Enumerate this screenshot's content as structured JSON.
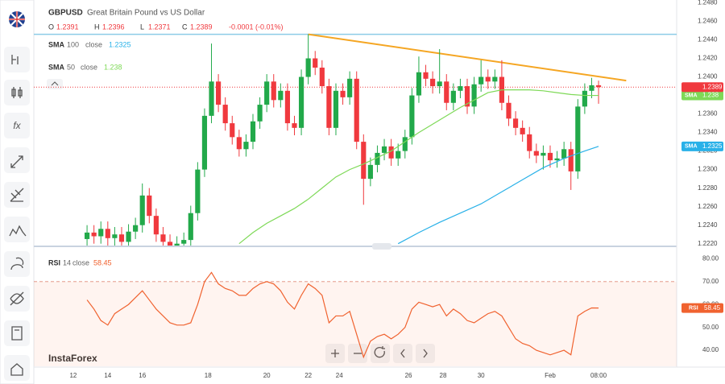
{
  "chart_data": {
    "type": "candlestick",
    "symbol": "GBPUSD",
    "description": "Great Britain Pound vs US Dollar",
    "ohlc_labels": [
      "O",
      "H",
      "L",
      "C"
    ],
    "change": "-0.0001 (-0.01%)",
    "watermark": "InstaForex",
    "up_color": "#22a94a",
    "down_color": "#f0393e",
    "x": [
      0,
      1,
      2,
      3,
      4,
      5,
      6,
      7,
      8,
      9,
      10,
      11,
      12,
      13,
      14,
      15,
      16,
      17,
      18,
      19,
      20,
      21,
      22,
      23,
      24,
      25,
      26,
      27,
      28,
      29,
      30,
      31,
      32,
      33,
      34,
      35,
      36,
      37,
      38,
      39,
      40,
      41,
      42,
      43,
      44,
      45,
      46,
      47,
      48,
      49,
      50,
      51,
      52,
      53,
      54,
      55,
      56,
      57,
      58,
      59,
      60,
      61,
      62,
      63,
      64,
      65,
      66,
      67,
      68,
      69,
      70,
      71,
      72,
      73,
      74
    ],
    "open": [
      1.2225,
      1.2232,
      1.2228,
      1.2236,
      1.2226,
      1.223,
      1.2222,
      1.2233,
      1.224,
      1.2272,
      1.225,
      1.223,
      1.2222,
      1.2218,
      1.222,
      1.2224,
      1.2253,
      1.23,
      1.2358,
      1.2395,
      1.237,
      1.235,
      1.2335,
      1.2322,
      1.233,
      1.2352,
      1.237,
      1.2395,
      1.2375,
      1.2385,
      1.235,
      1.2345,
      1.24,
      1.242,
      1.241,
      1.239,
      1.2345,
      1.2385,
      1.2378,
      1.2398,
      1.233,
      1.229,
      1.2305,
      1.2318,
      1.2325,
      1.2312,
      1.232,
      1.2335,
      1.238,
      1.2405,
      1.2398,
      1.239,
      1.2395,
      1.2372,
      1.2385,
      1.239,
      1.2368,
      1.2392,
      1.24,
      1.2395,
      1.24,
      1.2372,
      1.2355,
      1.2345,
      1.2338,
      1.232,
      1.2315,
      1.2318,
      1.231,
      1.2312,
      1.2322,
      1.2298,
      1.2368,
      1.2385,
      1.2391
    ],
    "high": [
      1.224,
      1.224,
      1.2244,
      1.2244,
      1.2238,
      1.2238,
      1.2241,
      1.2248,
      1.2285,
      1.228,
      1.2258,
      1.2238,
      1.223,
      1.2228,
      1.2232,
      1.2261,
      1.2308,
      1.2366,
      1.2436,
      1.2403,
      1.2378,
      1.2358,
      1.2343,
      1.2338,
      1.236,
      1.2378,
      1.2403,
      1.2403,
      1.2393,
      1.2393,
      1.2358,
      1.2408,
      1.2446,
      1.2428,
      1.2418,
      1.2398,
      1.2393,
      1.2393,
      1.2406,
      1.2406,
      1.2338,
      1.2313,
      1.2326,
      1.2333,
      1.2333,
      1.2328,
      1.2343,
      1.2388,
      1.2422,
      1.2413,
      1.2406,
      1.243,
      1.2403,
      1.2393,
      1.2398,
      1.2398,
      1.24,
      1.2418,
      1.2408,
      1.2408,
      1.2418,
      1.238,
      1.2363,
      1.2353,
      1.2346,
      1.2328,
      1.2326,
      1.2326,
      1.232,
      1.233,
      1.233,
      1.2376,
      1.2393,
      1.2399,
      1.2396
    ],
    "low": [
      1.2217,
      1.222,
      1.222,
      1.2218,
      1.2218,
      1.2214,
      1.2214,
      1.2225,
      1.2232,
      1.2242,
      1.2222,
      1.2214,
      1.221,
      1.221,
      1.2212,
      1.2216,
      1.2245,
      1.2292,
      1.235,
      1.2362,
      1.2342,
      1.2327,
      1.2314,
      1.2314,
      1.2322,
      1.2344,
      1.2362,
      1.2367,
      1.2367,
      1.2342,
      1.2337,
      1.2337,
      1.2392,
      1.2402,
      1.2382,
      1.2337,
      1.2337,
      1.237,
      1.237,
      1.2322,
      1.2262,
      1.2282,
      1.2297,
      1.231,
      1.2304,
      1.2304,
      1.2312,
      1.2327,
      1.2372,
      1.239,
      1.2382,
      1.2382,
      1.2364,
      1.2364,
      1.2377,
      1.236,
      1.236,
      1.2384,
      1.2387,
      1.2387,
      1.2364,
      1.2347,
      1.2337,
      1.233,
      1.2312,
      1.2307,
      1.23,
      1.2302,
      1.2302,
      1.2304,
      1.2278,
      1.229,
      1.236,
      1.2377,
      1.2371
    ],
    "close": [
      1.2232,
      1.2228,
      1.2236,
      1.2226,
      1.223,
      1.2222,
      1.2233,
      1.224,
      1.2272,
      1.225,
      1.223,
      1.2222,
      1.2218,
      1.222,
      1.2224,
      1.2253,
      1.23,
      1.2358,
      1.2395,
      1.237,
      1.235,
      1.2335,
      1.2322,
      1.233,
      1.2352,
      1.237,
      1.2395,
      1.2375,
      1.2385,
      1.235,
      1.2345,
      1.24,
      1.242,
      1.241,
      1.239,
      1.2345,
      1.2385,
      1.2378,
      1.2398,
      1.233,
      1.229,
      1.2305,
      1.2318,
      1.2325,
      1.2312,
      1.232,
      1.2335,
      1.238,
      1.2405,
      1.2398,
      1.239,
      1.2395,
      1.2372,
      1.2385,
      1.239,
      1.2368,
      1.2392,
      1.24,
      1.2395,
      1.24,
      1.2372,
      1.2355,
      1.2345,
      1.2338,
      1.232,
      1.2315,
      1.2318,
      1.231,
      1.2312,
      1.2322,
      1.2298,
      1.2368,
      1.2385,
      1.2391,
      1.2389
    ],
    "xlim": [
      -7.7,
      85.3
    ],
    "ylim": [
      1.2218,
      1.2483
    ],
    "yticks": [
      {
        "value": 1.248,
        "label": "1.2480"
      },
      {
        "value": 1.246,
        "label": "1.2460"
      },
      {
        "value": 1.244,
        "label": "1.2440"
      },
      {
        "value": 1.242,
        "label": "1.2420"
      },
      {
        "value": 1.24,
        "label": "1.2400"
      },
      {
        "value": 1.238,
        "label": "1.2380"
      },
      {
        "value": 1.236,
        "label": "1.2360"
      },
      {
        "value": 1.234,
        "label": "1.2340"
      },
      {
        "value": 1.232,
        "label": "1.2320"
      },
      {
        "value": 1.23,
        "label": "1.2300"
      },
      {
        "value": 1.228,
        "label": "1.2280"
      },
      {
        "value": 1.226,
        "label": "1.2260"
      },
      {
        "value": 1.224,
        "label": "1.2240"
      },
      {
        "value": 1.222,
        "label": "1.2220"
      }
    ],
    "xticks": [
      {
        "value": -2,
        "label": "12"
      },
      {
        "value": 3,
        "label": "14"
      },
      {
        "value": 8,
        "label": "16"
      },
      {
        "value": 17.5,
        "label": "18"
      },
      {
        "value": 26,
        "label": "20"
      },
      {
        "value": 32,
        "label": "22"
      },
      {
        "value": 36.5,
        "label": "24"
      },
      {
        "value": 46.5,
        "label": "26"
      },
      {
        "value": 51.5,
        "label": "28"
      },
      {
        "value": 57,
        "label": "30"
      },
      {
        "value": 67,
        "label": "Feb"
      },
      {
        "value": 74,
        "label": "08:00"
      }
    ],
    "grid": false,
    "indicators": [
      {
        "name": "SMA",
        "period": 100,
        "source": "close",
        "color": "#29b1e8",
        "x": [
          45,
          48,
          51,
          54,
          57,
          60,
          63,
          66,
          69,
          72,
          74
        ],
        "values": [
          1.222,
          1.2232,
          1.2243,
          1.2253,
          1.2263,
          1.2276,
          1.2289,
          1.2302,
          1.2312,
          1.232,
          1.2325
        ]
      },
      {
        "name": "SMA",
        "period": 50,
        "source": "close",
        "color": "#7ed957",
        "x": [
          22,
          24,
          26,
          28,
          30,
          32,
          34,
          36,
          38,
          40,
          42,
          44,
          46,
          48,
          50,
          52,
          54,
          56,
          58,
          60,
          62,
          64,
          66,
          68,
          70,
          72,
          74
        ],
        "values": [
          1.222,
          1.2232,
          1.2242,
          1.225,
          1.2258,
          1.2268,
          1.228,
          1.2292,
          1.23,
          1.2306,
          1.2313,
          1.232,
          1.233,
          1.234,
          1.2349,
          1.2358,
          1.2367,
          1.2375,
          1.2383,
          1.2386,
          1.2386,
          1.2386,
          1.2385,
          1.2383,
          1.2381,
          1.238,
          1.238
        ]
      }
    ],
    "trendline": {
      "x": [
        32,
        78
      ],
      "values": [
        1.2446,
        1.2396
      ],
      "color": "#f5a623"
    },
    "hline": {
      "value": 1.2446,
      "color": "#8ccbe6"
    },
    "rsi": {
      "name": "RSI",
      "period": 14,
      "source": "close",
      "color": "#f0622f",
      "values": [
        62,
        58,
        53,
        51,
        56,
        58,
        60,
        63,
        66,
        62,
        58,
        55,
        52,
        51,
        51,
        52,
        60,
        70,
        74,
        69,
        67,
        66,
        64,
        64,
        67,
        69,
        70,
        69,
        66,
        61,
        58,
        64,
        69,
        67,
        64,
        52,
        55,
        55,
        57,
        47,
        37,
        44,
        46,
        47,
        45,
        47,
        50,
        58,
        61,
        60,
        59,
        60,
        55,
        58,
        56,
        53,
        52,
        54,
        56,
        57,
        55,
        50,
        45,
        43,
        42,
        40,
        39,
        38,
        39,
        40,
        38,
        55,
        57,
        58.5,
        58.45
      ],
      "value_labels": [
        "58.45"
      ],
      "ylim": [
        33,
        84
      ],
      "band": [
        30,
        70
      ],
      "yticks": [
        {
          "value": 80,
          "label": "80.00"
        },
        {
          "value": 70,
          "label": "70.00"
        },
        {
          "value": 60,
          "label": "60.00"
        },
        {
          "value": 50,
          "label": "50.00"
        },
        {
          "value": 40,
          "label": "40.00"
        }
      ]
    }
  }
}
